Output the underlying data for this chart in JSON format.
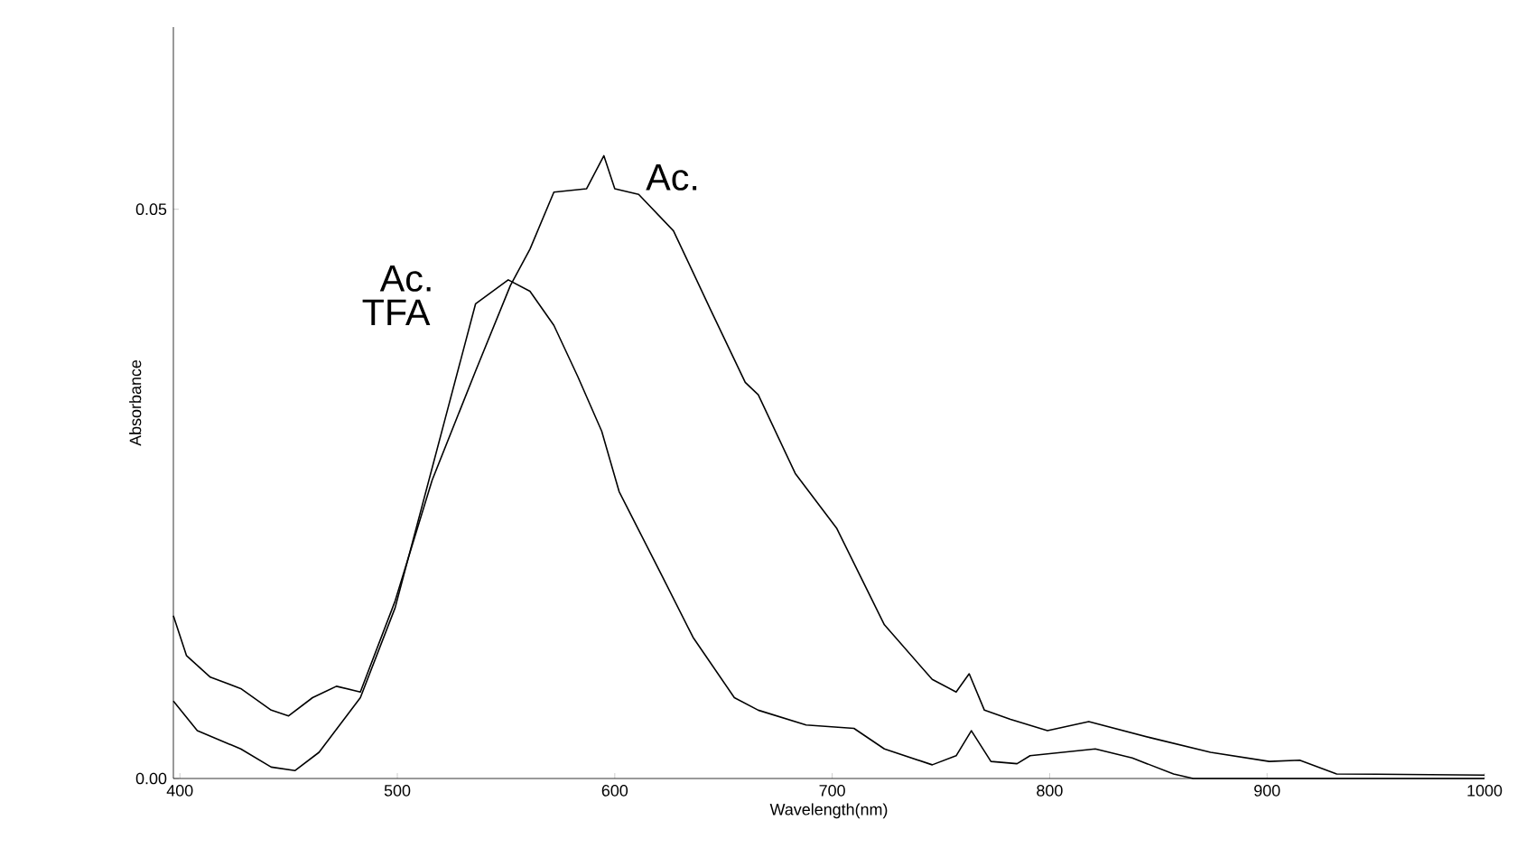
{
  "chart_data": {
    "type": "line",
    "xlabel": "Wavelength(nm)",
    "ylabel": "Absorbance",
    "xlim": [
      397,
      1000
    ],
    "ylim": [
      0,
      0.066
    ],
    "xticks": [
      400,
      500,
      600,
      700,
      800,
      900,
      1000
    ],
    "yticks": [
      {
        "value": 0,
        "label": "0.00"
      },
      {
        "value": 0.05,
        "label": "0.05"
      }
    ],
    "grid": false,
    "legend": false,
    "series": [
      {
        "name": "Ac.",
        "color": "#000000",
        "x": [
          397,
          403,
          414,
          428,
          442,
          450,
          461,
          472,
          483,
          499,
          516,
          536,
          552,
          561,
          572,
          587,
          595,
          600,
          611,
          627,
          644,
          660,
          666,
          683,
          702,
          724,
          746,
          757,
          763,
          770,
          782,
          799,
          818,
          846,
          874,
          901,
          915,
          932,
          1000
        ],
        "values": [
          0.0143,
          0.0108,
          0.0089,
          0.0079,
          0.006,
          0.0055,
          0.0071,
          0.0081,
          0.0076,
          0.0156,
          0.0262,
          0.0358,
          0.0433,
          0.0465,
          0.0515,
          0.0518,
          0.0547,
          0.0518,
          0.0513,
          0.0481,
          0.0412,
          0.0348,
          0.0337,
          0.0268,
          0.022,
          0.0135,
          0.0087,
          0.0076,
          0.0092,
          0.006,
          0.0052,
          0.0042,
          0.005,
          0.0036,
          0.0023,
          0.0015,
          0.0016,
          0.0004,
          0.0003
        ]
      },
      {
        "name": "TFA",
        "color": "#000000",
        "x": [
          397,
          408,
          428,
          442,
          453,
          464,
          483,
          499,
          522,
          536,
          551,
          561,
          572,
          583,
          594,
          602,
          622,
          636,
          655,
          666,
          688,
          710,
          724,
          746,
          757,
          764,
          773,
          785,
          791,
          821,
          838,
          857,
          866,
          1000
        ],
        "values": [
          0.0068,
          0.0042,
          0.0026,
          0.001,
          0.0007,
          0.0023,
          0.0071,
          0.015,
          0.0316,
          0.0417,
          0.0438,
          0.0428,
          0.0398,
          0.0353,
          0.0305,
          0.0252,
          0.0177,
          0.0124,
          0.0071,
          0.006,
          0.0047,
          0.0044,
          0.0026,
          0.0012,
          0.002,
          0.0042,
          0.0015,
          0.0013,
          0.002,
          0.0026,
          0.0018,
          0.0004,
          0,
          0
        ]
      }
    ],
    "annotations": [
      "Ac."
    ]
  }
}
